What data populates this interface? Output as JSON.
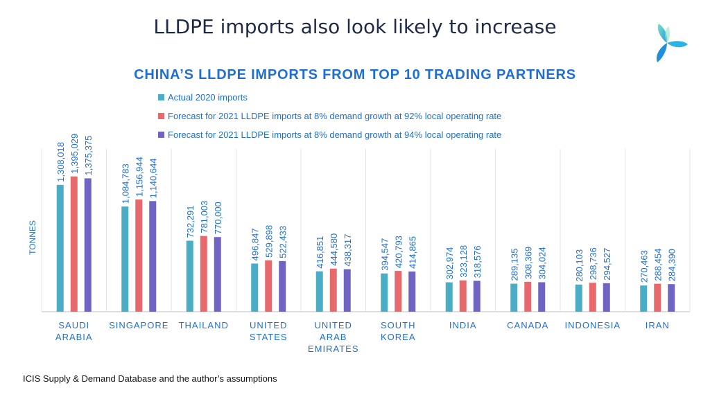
{
  "slide": {
    "title": "LLDPE imports also look likely to increase",
    "source": "ICIS Supply & Demand Database and the author’s assumptions"
  },
  "chart_data": {
    "type": "bar",
    "title": "CHINA’S LLDPE IMPORTS FROM TOP 10 TRADING PARTNERS",
    "ylabel": "TONNES",
    "xlabel": "",
    "ylim": [
      0,
      1500000
    ],
    "grid": "vertical separators between categories",
    "legend_position": "top",
    "categories": [
      [
        "SAUDI",
        "ARABIA"
      ],
      [
        "SINGAPORE"
      ],
      [
        "THAILAND"
      ],
      [
        "UNITED",
        "STATES"
      ],
      [
        "UNITED",
        "ARAB",
        "EMIRATES"
      ],
      [
        "SOUTH",
        "KOREA"
      ],
      [
        "INDIA"
      ],
      [
        "CANADA"
      ],
      [
        "INDONESIA"
      ],
      [
        "IRAN"
      ]
    ],
    "series": [
      {
        "name": "Actual 2020 imports",
        "color": "#4BACC6",
        "values": [
          1308018,
          1084783,
          732291,
          496847,
          416851,
          394547,
          302974,
          289135,
          280103,
          270463
        ],
        "labels": [
          "1,308,018",
          "1,084,783",
          "732,291",
          "496,847",
          "416,851",
          "394,547",
          "302,974",
          "289,135",
          "280,103",
          "270,463"
        ]
      },
      {
        "name": "Forecast for 2021 LLDPE imports at 8% demand growth at 92% local operating rate",
        "color": "#E8696B",
        "values": [
          1395029,
          1156944,
          781003,
          529898,
          444580,
          420793,
          323128,
          308369,
          298736,
          288454
        ],
        "labels": [
          "1,395,029",
          "1,156,944",
          "781,003",
          "529,898",
          "444,580",
          "420,793",
          "323,128",
          "308,369",
          "298,736",
          "288,454"
        ]
      },
      {
        "name": "Forecast for 2021 LLDPE imports at 8% demand growth at 94% local operating rate",
        "color": "#6F63C3",
        "values": [
          1375375,
          1140644,
          770000,
          522433,
          438317,
          414865,
          318576,
          304024,
          294527,
          284390
        ],
        "labels": [
          "1,375,375",
          "1,140,644",
          "770,000",
          "522,433",
          "438,317",
          "414,865",
          "318,576",
          "304,024",
          "294,527",
          "284,390"
        ]
      }
    ]
  },
  "colors": {
    "chart_title": "#1F6FD0",
    "text_blue": "#1F6FD0",
    "axis": "#BFBFBF"
  },
  "logo": {
    "icon": "trefoil-logo-icon"
  }
}
